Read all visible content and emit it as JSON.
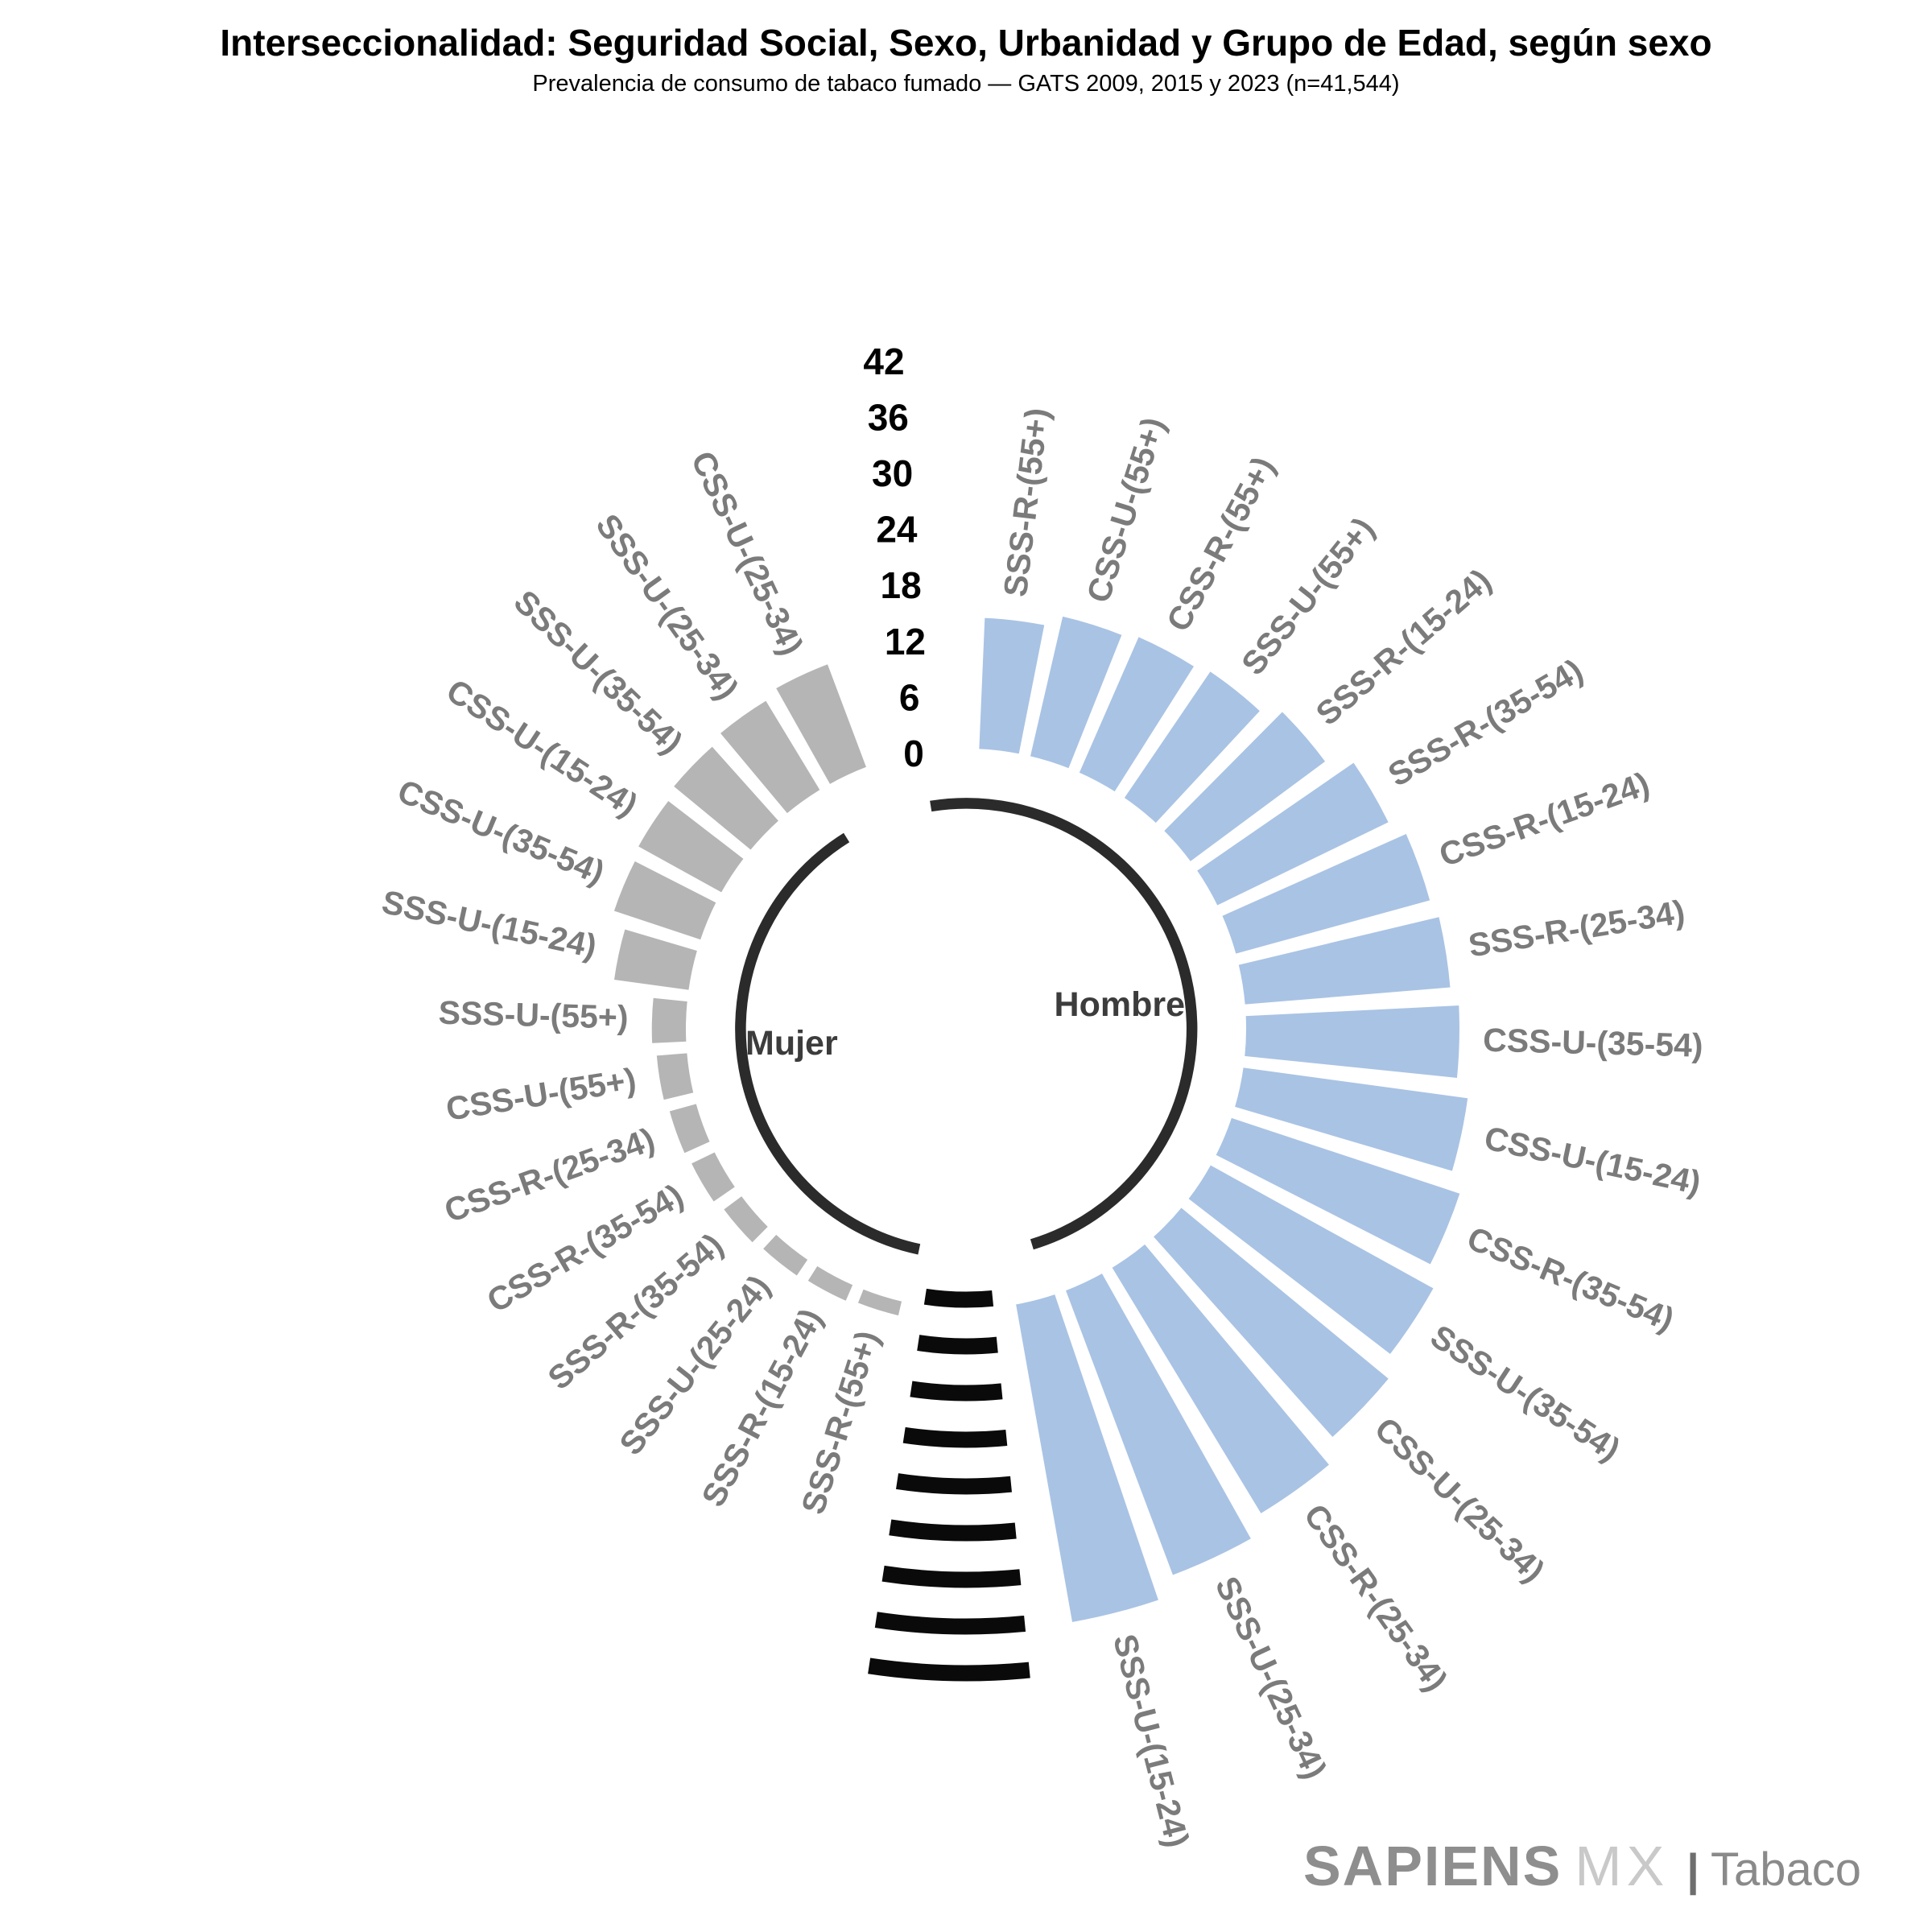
{
  "header": {
    "title": "Interseccionalidad: Seguridad Social, Sexo, Urbanidad y Grupo de Edad, según sexo",
    "subtitle": "Prevalencia de consumo de tabaco fumado — GATS 2009, 2015 y 2023 (n=41,544)"
  },
  "chart_data": {
    "type": "bar",
    "layout": "circular-radial",
    "rlim": [
      0,
      42
    ],
    "r_ticks": [
      0,
      6,
      12,
      18,
      24,
      30,
      36,
      42
    ],
    "grid": "dashed-radial-ticks-at-bottom-gap",
    "legend_position": "inside-center",
    "series": [
      {
        "name": "Hombre",
        "color": "#a9c3e4",
        "order": "clockwise-from-top",
        "categories": [
          "SSS-R-(55+)",
          "CSS-U-(55+)",
          "CSS-R-(55+)",
          "SSS-U-(55+)",
          "SSS-R-(15-24)",
          "SSS-R-(35-54)",
          "CSS-R-(15-24)",
          "SSS-R-(25-34)",
          "CSS-U-(35-54)",
          "CSS-U-(15-24)",
          "CSS-R-(35-54)",
          "SSS-U-(35-54)",
          "CSS-U-(25-34)",
          "CSS-R-(25-34)",
          "SSS-U-(25-34)",
          "SSS-U-(15-24)"
        ],
        "values": [
          14.3,
          15.6,
          16.1,
          16.6,
          18.2,
          20.6,
          21.8,
          22.3,
          23.1,
          24.5,
          26.0,
          27.5,
          29.0,
          31.0,
          32.8,
          34.8
        ]
      },
      {
        "name": "Mujer",
        "color": "#b5b5b5",
        "order": "counterclockwise-from-top",
        "categories": [
          "CSS-U-(25-34)",
          "SSS-U-(25-34)",
          "SSS-U-(35-54)",
          "CSS-U-(15-24)",
          "CSS-U-(35-54)",
          "SSS-U-(15-24)",
          "SSS-U-(55+)",
          "CSS-U-(55+)",
          "CSS-R-(25-34)",
          "CSS-R-(35-54)",
          "SSS-R-(35-54)",
          "SSS-U-(25-24)",
          "SSS-R-(15-24)",
          "SSS-R-(55+)"
        ],
        "values": [
          12.0,
          11.4,
          10.9,
          10.4,
          10.0,
          8.3,
          3.9,
          3.5,
          3.2,
          3.0,
          2.6,
          2.3,
          2.1,
          1.8
        ]
      }
    ]
  },
  "colors": {
    "hombre_bar": "#a9c3e4",
    "mujer_bar": "#b5b5b5",
    "bar_label": "#7b7b7b",
    "axis_label": "#000000",
    "inner_arc": "#2b2b2b",
    "dash_tick": "#0a0a0a",
    "sex_label": "#3c3c3c",
    "bar_stroke": "#ffffff"
  },
  "logo": {
    "brand": "SAPIENS",
    "brand2": "MX",
    "divider": "|",
    "product": "Tabaco"
  }
}
